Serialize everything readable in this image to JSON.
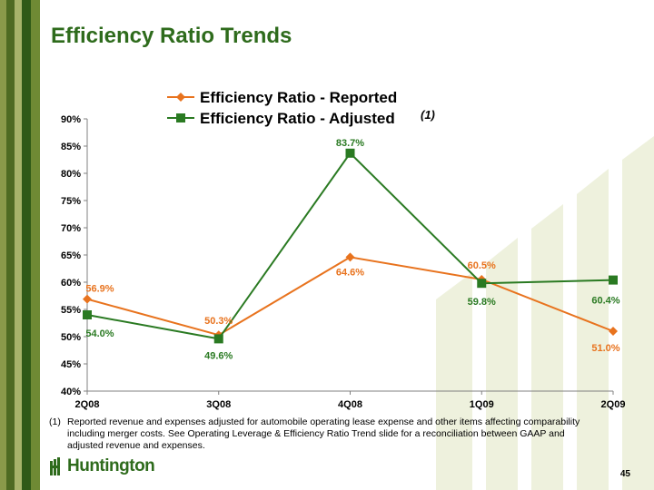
{
  "page": {
    "title": "Efficiency Ratio Trends",
    "footnote_marker": "(1)",
    "footnote": "Reported revenue and expenses adjusted for automobile operating lease expense and other items affecting comparability including merger costs.  See Operating Leverage & Efficiency Ratio Trend slide for a reconciliation between GAAP and adjusted revenue and expenses.",
    "logo_text": "Huntington",
    "page_number": "45"
  },
  "colors": {
    "title": "#2e6b1c",
    "reported": "#e8731e",
    "adjusted": "#2a7a22"
  },
  "chart_data": {
    "type": "line",
    "categories": [
      "2Q08",
      "3Q08",
      "4Q08",
      "1Q09",
      "2Q09"
    ],
    "ylim": [
      40,
      90
    ],
    "yticks": [
      40,
      45,
      50,
      55,
      60,
      65,
      70,
      75,
      80,
      85,
      90
    ],
    "ytick_labels": [
      "40%",
      "45%",
      "50%",
      "55%",
      "60%",
      "65%",
      "70%",
      "75%",
      "80%",
      "85%",
      "90%"
    ],
    "legend_position": "top",
    "grid": false,
    "series": [
      {
        "name": "Efficiency Ratio - Reported",
        "name_suffix": "",
        "marker": "diamond",
        "color": "#e8731e",
        "values": [
          56.9,
          50.3,
          64.6,
          60.5,
          51.0
        ],
        "labels": [
          "56.9%",
          "50.3%",
          "64.6%",
          "60.5%",
          "51.0%"
        ]
      },
      {
        "name": "Efficiency Ratio - Adjusted",
        "name_suffix": "(1)",
        "marker": "square",
        "color": "#2a7a22",
        "values": [
          54.0,
          49.6,
          83.7,
          59.8,
          60.4
        ],
        "labels": [
          "54.0%",
          "49.6%",
          "83.7%",
          "59.8%",
          "60.4%"
        ]
      }
    ]
  }
}
